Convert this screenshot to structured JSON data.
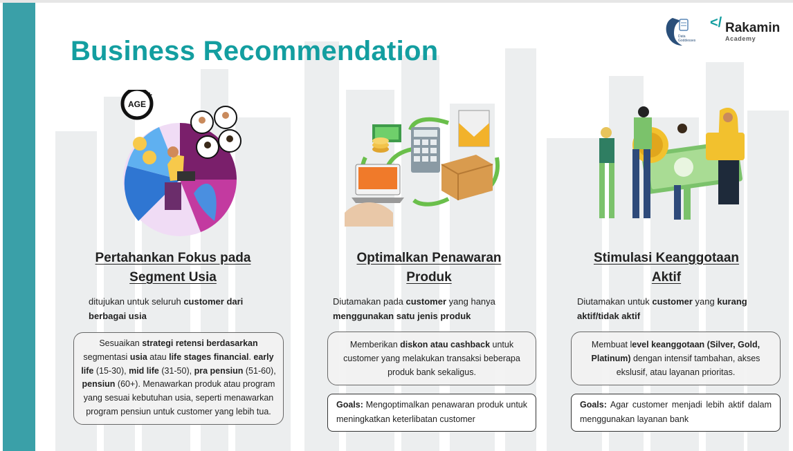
{
  "title": "Business Recommendation",
  "logos": {
    "data_goddesses_lines": [
      "Data",
      "Goddesses"
    ],
    "rakamin_name": "Rakamin",
    "rakamin_sub": "Academy",
    "rakamin_mark": "</"
  },
  "colors": {
    "accent": "#139ea0",
    "sidebar": "#3aa0a8",
    "text": "#222222",
    "box_bg": "#f2f2f2"
  },
  "illustrations": {
    "col1_badge": "AGE",
    "col1_badge_plus": "+"
  },
  "columns": [
    {
      "heading": [
        "Pertahankan Fokus pada",
        "Segment Usia"
      ],
      "desc": [
        {
          "text": "ditujukan untuk seluruh ",
          "bold": false
        },
        {
          "text": "customer dari berbagai usia",
          "bold": true
        }
      ],
      "box": [
        {
          "text": "Sesuaikan ",
          "bold": false
        },
        {
          "text": "strategi retensi berdasarkan",
          "bold": true
        },
        {
          "text": " segmentasi ",
          "bold": false
        },
        {
          "text": "usia",
          "bold": true
        },
        {
          "text": " atau ",
          "bold": false
        },
        {
          "text": "life stages financial",
          "bold": true
        },
        {
          "text": ". ",
          "bold": false
        },
        {
          "text": "early life",
          "bold": true
        },
        {
          "text": " (15-30), ",
          "bold": false
        },
        {
          "text": "mid life",
          "bold": true
        },
        {
          "text": " (31-50), ",
          "bold": false
        },
        {
          "text": "pra pensiun",
          "bold": true
        },
        {
          "text": " (51-60), ",
          "bold": false
        },
        {
          "text": "pensiun",
          "bold": true
        },
        {
          "text": " (60+). Menawarkan produk atau program yang sesuai kebutuhan usia, seperti menawarkan program pensiun untuk customer yang lebih tua.",
          "bold": false
        }
      ],
      "goal": null
    },
    {
      "heading": [
        "Optimalkan Penawaran",
        "Produk"
      ],
      "desc": [
        {
          "text": "Diutamakan pada ",
          "bold": false
        },
        {
          "text": "customer",
          "bold": true
        },
        {
          "text": " yang hanya ",
          "bold": false
        },
        {
          "text": "menggunakan satu jenis produk",
          "bold": true
        }
      ],
      "box": [
        {
          "text": "Memberikan ",
          "bold": false
        },
        {
          "text": "diskon atau cashback",
          "bold": true
        },
        {
          "text": " untuk customer yang melakukan transaksi beberapa produk bank sekaligus.",
          "bold": false
        }
      ],
      "goal": {
        "label": "Goals:",
        "text": " Mengoptimalkan penawaran produk untuk meningkatkan keterlibatan customer"
      }
    },
    {
      "heading": [
        "Stimulasi Keanggotaan",
        "Aktif"
      ],
      "desc": [
        {
          "text": "Diutamakan untuk ",
          "bold": false
        },
        {
          "text": "customer",
          "bold": true
        },
        {
          "text": " yang ",
          "bold": false
        },
        {
          "text": "kurang aktif/tidak aktif",
          "bold": true
        }
      ],
      "box": [
        {
          "text": "Membuat l",
          "bold": false
        },
        {
          "text": "evel keanggotaan (Silver, Gold, Platinum)",
          "bold": true
        },
        {
          "text": " dengan intensif tambahan, akses ekslusif, atau layanan prioritas.",
          "bold": false
        }
      ],
      "goal": {
        "label": "Goals:",
        "text": " Agar customer menjadi lebih aktif dalam menggunakan layanan bank"
      }
    }
  ]
}
